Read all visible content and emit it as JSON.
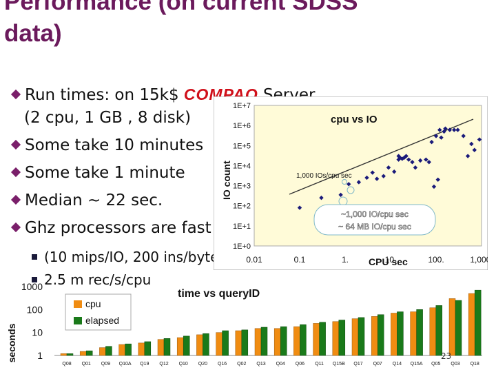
{
  "slide": {
    "title_line1": "Performance (on current SDSS",
    "title_line2": "data)",
    "bullets": [
      {
        "pre": "Run times: on 15k$ ",
        "brand": "COMPAQ",
        "post": " Server",
        "cont": "(2 cpu, 1 GB , 8 disk)"
      },
      {
        "pre": "Some take 10 minutes"
      },
      {
        "pre": "Some take 1 minute"
      },
      {
        "pre": "Median ~ 22 sec."
      },
      {
        "pre": "Ghz processors are fast!"
      }
    ],
    "subbullets": [
      "(10 mips/IO, 200 ins/byte)",
      "2.5 m rec/s/cpu"
    ],
    "page_number": "23"
  },
  "colors": {
    "title": "#6b1a5c",
    "brand": "#d0101a",
    "cpu": "#f08c12",
    "elapsed": "#1a7a1a",
    "scatter_bg": "#fffbd8",
    "points": "#1a1a7a"
  },
  "chart_data": [
    {
      "type": "scatter",
      "title": "cpu vs IO",
      "xlabel": "CPU sec",
      "ylabel": "IO count",
      "x_scale": "log",
      "y_scale": "log",
      "xlim": [
        0.01,
        1000
      ],
      "ylim": [
        1,
        10000000
      ],
      "x_ticks": [
        "0.01",
        "0.1",
        "1.",
        "10.",
        "100.",
        "1,000."
      ],
      "y_ticks": [
        "1E+0",
        "1E+1",
        "1E+2",
        "1E+3",
        "1E+4",
        "1E+5",
        "1E+6",
        "1E+7"
      ],
      "annotations": [
        "1,000 IOs/cpu sec",
        "~1,000 IO/cpu sec",
        "~ 64 MB IO/cpu sec"
      ],
      "grid": false,
      "points": [
        [
          0.1,
          80
        ],
        [
          0.3,
          250
        ],
        [
          0.8,
          350
        ],
        [
          1.2,
          1200
        ],
        [
          2,
          1500
        ],
        [
          3,
          2500
        ],
        [
          4,
          4500
        ],
        [
          5,
          2200
        ],
        [
          7,
          3000
        ],
        [
          9,
          8000
        ],
        [
          12,
          5000
        ],
        [
          15,
          20000
        ],
        [
          15,
          30000
        ],
        [
          16,
          25000
        ],
        [
          18,
          22000
        ],
        [
          20,
          25000
        ],
        [
          22,
          30000
        ],
        [
          25,
          20000
        ],
        [
          30,
          15000
        ],
        [
          35,
          8000
        ],
        [
          45,
          18000
        ],
        [
          60,
          20000
        ],
        [
          70,
          15000
        ],
        [
          80,
          150000
        ],
        [
          90,
          900
        ],
        [
          100,
          300000
        ],
        [
          110,
          2000
        ],
        [
          120,
          600000
        ],
        [
          130,
          250000
        ],
        [
          150,
          500000
        ],
        [
          160,
          700000
        ],
        [
          200,
          600000
        ],
        [
          250,
          600000
        ],
        [
          300,
          600000
        ],
        [
          400,
          300000
        ],
        [
          500,
          30000
        ],
        [
          600,
          120000
        ],
        [
          700,
          60000
        ],
        [
          900,
          200000
        ]
      ]
    },
    {
      "type": "bar",
      "title": "time vs queryID",
      "ylabel": "seconds",
      "y_scale": "log",
      "ylim": [
        1,
        1000
      ],
      "y_ticks": [
        "1",
        "10",
        "100",
        "1000"
      ],
      "categories": [
        "Q08",
        "Q01",
        "Q09",
        "Q10A",
        "Q19",
        "Q12",
        "Q10",
        "Q20",
        "Q16",
        "Q02",
        "Q13",
        "Q04",
        "Q06",
        "Q11",
        "Q15B",
        "Q17",
        "Q07",
        "Q14",
        "Q15A",
        "Q05",
        "Q03",
        "Q18"
      ],
      "series": [
        {
          "name": "cpu",
          "values": [
            1.2,
            1.5,
            2.2,
            3,
            3.5,
            5,
            6,
            8,
            10,
            12,
            15,
            15,
            18,
            25,
            30,
            40,
            50,
            70,
            80,
            120,
            300,
            500
          ]
        },
        {
          "name": "elapsed",
          "values": [
            1.2,
            1.6,
            2.5,
            3.2,
            4,
            5.5,
            7,
            9,
            12,
            13,
            17,
            18,
            22,
            28,
            35,
            45,
            60,
            80,
            100,
            150,
            250,
            700
          ]
        }
      ]
    }
  ]
}
